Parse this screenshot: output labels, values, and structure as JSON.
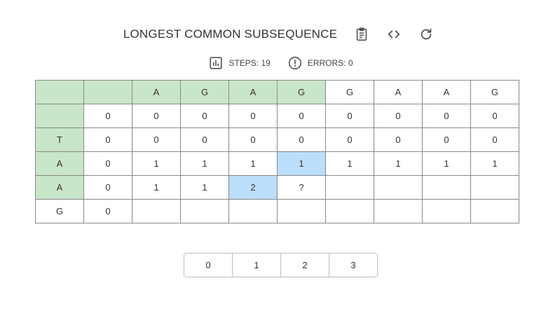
{
  "title": "LONGEST COMMON SUBSEQUENCE",
  "icons": {
    "copy": "clipboard-icon",
    "code": "code-icon",
    "reset": "refresh-icon",
    "steps": "bar-chart-icon",
    "errors": "alert-circle-icon"
  },
  "stats": {
    "steps_label": "STEPS: 19",
    "errors_label": "ERRORS: 0"
  },
  "colors": {
    "header_cell": "#c8e6c9",
    "highlight_cell": "#bbdefb",
    "border": "#888888"
  },
  "table": {
    "rows": [
      [
        {
          "v": "",
          "t": "hdr"
        },
        {
          "v": "",
          "t": "hdr"
        },
        {
          "v": "A",
          "t": "hdr"
        },
        {
          "v": "G",
          "t": "hdr"
        },
        {
          "v": "A",
          "t": "hdr"
        },
        {
          "v": "G",
          "t": "hdr"
        },
        {
          "v": "G",
          "t": ""
        },
        {
          "v": "A",
          "t": ""
        },
        {
          "v": "A",
          "t": ""
        },
        {
          "v": "G",
          "t": ""
        }
      ],
      [
        {
          "v": "",
          "t": "hdr"
        },
        {
          "v": "0",
          "t": ""
        },
        {
          "v": "0",
          "t": ""
        },
        {
          "v": "0",
          "t": ""
        },
        {
          "v": "0",
          "t": ""
        },
        {
          "v": "0",
          "t": ""
        },
        {
          "v": "0",
          "t": ""
        },
        {
          "v": "0",
          "t": ""
        },
        {
          "v": "0",
          "t": ""
        },
        {
          "v": "0",
          "t": ""
        }
      ],
      [
        {
          "v": "T",
          "t": "hdr"
        },
        {
          "v": "0",
          "t": ""
        },
        {
          "v": "0",
          "t": ""
        },
        {
          "v": "0",
          "t": ""
        },
        {
          "v": "0",
          "t": ""
        },
        {
          "v": "0",
          "t": ""
        },
        {
          "v": "0",
          "t": ""
        },
        {
          "v": "0",
          "t": ""
        },
        {
          "v": "0",
          "t": ""
        },
        {
          "v": "0",
          "t": ""
        }
      ],
      [
        {
          "v": "A",
          "t": "hdr"
        },
        {
          "v": "0",
          "t": ""
        },
        {
          "v": "1",
          "t": ""
        },
        {
          "v": "1",
          "t": ""
        },
        {
          "v": "1",
          "t": ""
        },
        {
          "v": "1",
          "t": "hl"
        },
        {
          "v": "1",
          "t": ""
        },
        {
          "v": "1",
          "t": ""
        },
        {
          "v": "1",
          "t": ""
        },
        {
          "v": "1",
          "t": ""
        }
      ],
      [
        {
          "v": "A",
          "t": "hdr"
        },
        {
          "v": "0",
          "t": ""
        },
        {
          "v": "1",
          "t": ""
        },
        {
          "v": "1",
          "t": ""
        },
        {
          "v": "2",
          "t": "hl"
        },
        {
          "v": "?",
          "t": ""
        },
        {
          "v": "",
          "t": ""
        },
        {
          "v": "",
          "t": ""
        },
        {
          "v": "",
          "t": ""
        },
        {
          "v": "",
          "t": ""
        }
      ],
      [
        {
          "v": "G",
          "t": ""
        },
        {
          "v": "0",
          "t": ""
        },
        {
          "v": "",
          "t": ""
        },
        {
          "v": "",
          "t": ""
        },
        {
          "v": "",
          "t": ""
        },
        {
          "v": "",
          "t": ""
        },
        {
          "v": "",
          "t": ""
        },
        {
          "v": "",
          "t": ""
        },
        {
          "v": "",
          "t": ""
        },
        {
          "v": "",
          "t": ""
        }
      ]
    ]
  },
  "choices": [
    "0",
    "1",
    "2",
    "3"
  ]
}
